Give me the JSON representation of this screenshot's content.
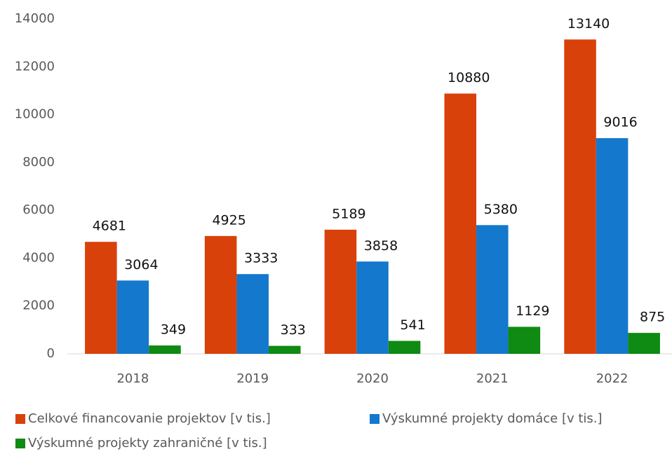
{
  "chart_data": {
    "type": "bar",
    "categories": [
      "2018",
      "2019",
      "2020",
      "2021",
      "2022"
    ],
    "series": [
      {
        "name": "Celkové financovanie projektov [v tis.]",
        "color": "#d9410b",
        "values": [
          4681,
          4925,
          5189,
          10880,
          13140
        ]
      },
      {
        "name": "Výskumné projekty domáce [v tis.]",
        "color": "#1478cc",
        "values": [
          3064,
          3333,
          3858,
          5380,
          9016
        ]
      },
      {
        "name": "Výskumné projekty zahraničné [v tis.]",
        "color": "#0f8a12",
        "values": [
          349,
          333,
          541,
          1129,
          875
        ]
      }
    ],
    "ylim": [
      0,
      14000
    ],
    "yticks": [
      0,
      2000,
      4000,
      6000,
      8000,
      10000,
      12000,
      14000
    ],
    "grid": false,
    "legend": "bottom"
  }
}
